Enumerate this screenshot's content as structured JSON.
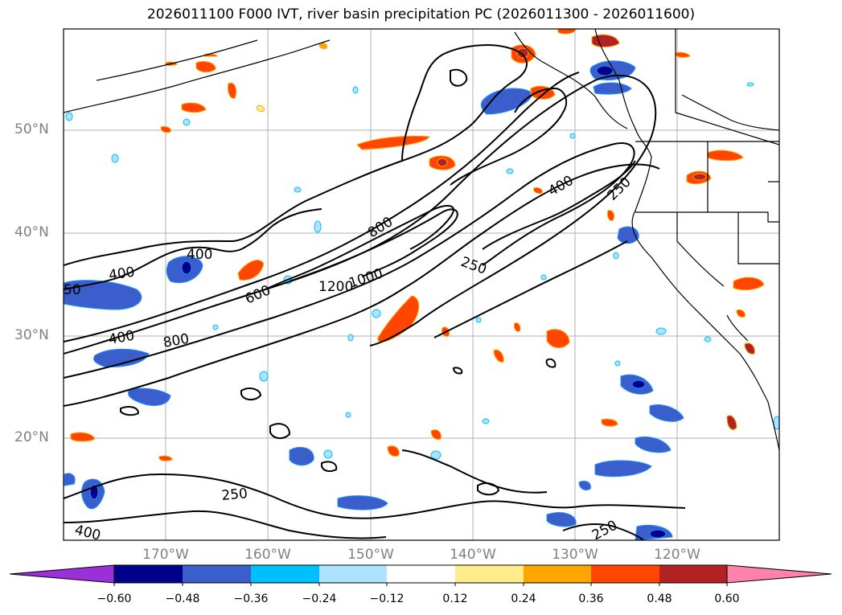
{
  "title": "2026011100 F000 IVT, river basin precipitation PC (2026011300 - 2026011600)",
  "map": {
    "lat_labels": [
      "50°N",
      "40°N",
      "30°N",
      "20°N"
    ],
    "lon_labels": [
      "170°W",
      "160°W",
      "150°W",
      "140°W",
      "130°W",
      "120°W"
    ],
    "contour_labels": [
      "400",
      "400",
      "400",
      "400",
      "800",
      "800",
      "600",
      "1200",
      "1000",
      "250",
      "250",
      "250",
      "250",
      "400",
      "50"
    ]
  },
  "colorbar": {
    "ticks": [
      "−0.60",
      "−0.48",
      "−0.36",
      "−0.24",
      "−0.12",
      "0.12",
      "0.24",
      "0.36",
      "0.48",
      "0.60"
    ],
    "colors": {
      "under": "#9b30d9",
      "bins": [
        "#00008b",
        "#3a5fcd",
        "#00bfff",
        "#aee3ff",
        "#ffffff",
        "#ffec8b",
        "#ffa500",
        "#ff4500",
        "#b22222"
      ],
      "over": "#ff82ab"
    }
  }
}
